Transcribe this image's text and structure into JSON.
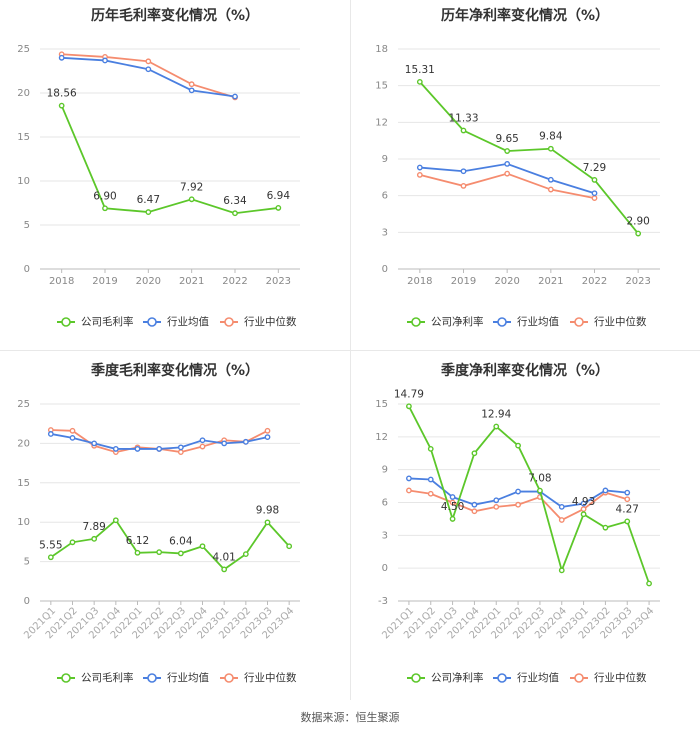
{
  "source": "数据来源：恒生聚源",
  "colors": {
    "company": "#5cc72a",
    "avg": "#4a7fe0",
    "median": "#f58c6f",
    "grid": "#e6e6e6",
    "axis": "#999999",
    "text": "#333333",
    "tick": "#888888"
  },
  "chart_data": [
    {
      "type": "line",
      "title": "历年毛利率变化情况（%）",
      "categories": [
        "2018",
        "2019",
        "2020",
        "2021",
        "2022",
        "2023"
      ],
      "ylim": [
        0,
        25
      ],
      "yticks": [
        0,
        5,
        10,
        15,
        20,
        25
      ],
      "series": [
        {
          "name": "公司毛利率",
          "role": "company",
          "values": [
            18.56,
            6.9,
            6.47,
            7.92,
            6.34,
            6.94
          ],
          "labels": [
            "18.56",
            "6.90",
            "6.47",
            "7.92",
            "6.34",
            "6.94"
          ]
        },
        {
          "name": "行业均值",
          "role": "avg",
          "values": [
            24.0,
            23.7,
            22.7,
            20.3,
            19.6,
            null
          ]
        },
        {
          "name": "行业中位数",
          "role": "median",
          "values": [
            24.4,
            24.1,
            23.6,
            21.0,
            19.5,
            null
          ]
        }
      ]
    },
    {
      "type": "line",
      "title": "历年净利率变化情况（%）",
      "categories": [
        "2018",
        "2019",
        "2020",
        "2021",
        "2022",
        "2023"
      ],
      "ylim": [
        0,
        18
      ],
      "yticks": [
        0,
        3,
        6,
        9,
        12,
        15,
        18
      ],
      "series": [
        {
          "name": "公司净利率",
          "role": "company",
          "values": [
            15.31,
            11.33,
            9.65,
            9.84,
            7.29,
            2.9
          ],
          "labels": [
            "15.31",
            "11.33",
            "9.65",
            "9.84",
            "7.29",
            "2.90"
          ]
        },
        {
          "name": "行业均值",
          "role": "avg",
          "values": [
            8.3,
            8.0,
            8.6,
            7.3,
            6.2,
            null
          ]
        },
        {
          "name": "行业中位数",
          "role": "median",
          "values": [
            7.7,
            6.8,
            7.8,
            6.5,
            5.8,
            null
          ]
        }
      ]
    },
    {
      "type": "line",
      "title": "季度毛利率变化情况（%）",
      "categories": [
        "2021Q1",
        "2021Q2",
        "2021Q3",
        "2021Q4",
        "2022Q1",
        "2022Q2",
        "2022Q3",
        "2022Q4",
        "2023Q1",
        "2023Q2",
        "2023Q3",
        "2023Q4"
      ],
      "ylim": [
        0,
        25
      ],
      "yticks": [
        0,
        5,
        10,
        15,
        20,
        25
      ],
      "series": [
        {
          "name": "公司毛利率",
          "role": "company",
          "values": [
            5.55,
            7.45,
            7.89,
            10.25,
            6.12,
            6.2,
            6.04,
            6.95,
            4.01,
            5.95,
            9.98,
            6.95
          ],
          "labels": [
            "5.55",
            "",
            "7.89",
            "",
            "6.12",
            "",
            "6.04",
            "",
            "4.01",
            "",
            "9.98",
            ""
          ]
        },
        {
          "name": "行业均值",
          "role": "avg",
          "values": [
            21.2,
            20.7,
            20.0,
            19.3,
            19.3,
            19.3,
            19.5,
            20.4,
            20.0,
            20.2,
            20.8,
            null
          ]
        },
        {
          "name": "行业中位数",
          "role": "median",
          "values": [
            21.7,
            21.6,
            19.7,
            18.9,
            19.5,
            19.3,
            18.9,
            19.6,
            20.4,
            20.2,
            21.6,
            null
          ]
        }
      ]
    },
    {
      "type": "line",
      "title": "季度净利率变化情况（%）",
      "categories": [
        "2021Q1",
        "2021Q2",
        "2021Q3",
        "2021Q4",
        "2022Q1",
        "2022Q2",
        "2022Q3",
        "2022Q4",
        "2023Q1",
        "2023Q2",
        "2023Q3",
        "2023Q4"
      ],
      "ylim": [
        -3,
        15
      ],
      "yticks": [
        -3,
        0,
        3,
        6,
        9,
        12,
        15
      ],
      "series": [
        {
          "name": "公司净利率",
          "role": "company",
          "values": [
            14.79,
            10.9,
            4.5,
            10.5,
            12.94,
            11.2,
            7.08,
            -0.2,
            4.93,
            3.7,
            4.27,
            -1.4
          ],
          "labels": [
            "14.79",
            "",
            "4.50",
            "",
            "12.94",
            "",
            "7.08",
            "",
            "4.93",
            "",
            "4.27",
            ""
          ]
        },
        {
          "name": "行业均值",
          "role": "avg",
          "values": [
            8.2,
            8.1,
            6.5,
            5.8,
            6.2,
            7.0,
            7.0,
            5.6,
            5.9,
            7.1,
            6.9,
            null
          ]
        },
        {
          "name": "行业中位数",
          "role": "median",
          "values": [
            7.1,
            6.8,
            6.0,
            5.2,
            5.6,
            5.8,
            6.5,
            4.4,
            5.4,
            6.9,
            6.3,
            null
          ]
        }
      ]
    }
  ]
}
